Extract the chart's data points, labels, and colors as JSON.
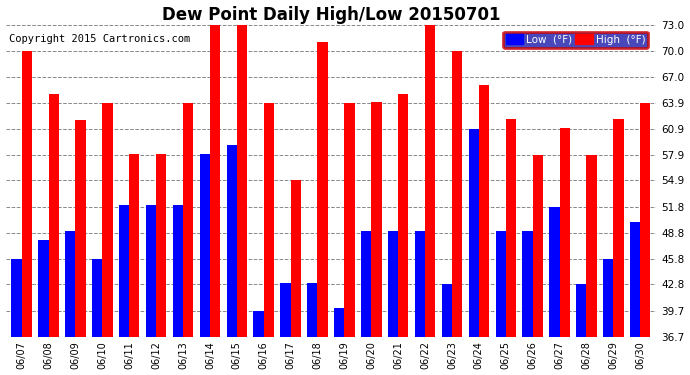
{
  "title": "Dew Point Daily High/Low 20150701",
  "copyright": "Copyright 2015 Cartronics.com",
  "categories": [
    "06/07",
    "06/08",
    "06/09",
    "06/10",
    "06/11",
    "06/12",
    "06/13",
    "06/14",
    "06/15",
    "06/16",
    "06/17",
    "06/18",
    "06/19",
    "06/20",
    "06/21",
    "06/22",
    "06/23",
    "06/24",
    "06/25",
    "06/26",
    "06/27",
    "06/28",
    "06/29",
    "06/30"
  ],
  "low": [
    45.8,
    48.0,
    49.0,
    45.8,
    52.0,
    52.0,
    52.0,
    58.0,
    59.0,
    39.7,
    43.0,
    43.0,
    40.0,
    49.0,
    49.0,
    49.0,
    42.8,
    60.9,
    49.0,
    49.0,
    51.8,
    42.8,
    45.8,
    50.0
  ],
  "high": [
    70.0,
    65.0,
    61.9,
    63.9,
    58.0,
    58.0,
    63.9,
    73.0,
    73.0,
    63.9,
    55.0,
    71.0,
    63.9,
    64.0,
    65.0,
    73.0,
    70.0,
    66.0,
    62.0,
    57.9,
    61.0,
    57.9,
    62.0,
    63.9
  ],
  "yticks": [
    36.7,
    39.7,
    42.8,
    45.8,
    48.8,
    51.8,
    54.9,
    57.9,
    60.9,
    63.9,
    67.0,
    70.0,
    73.0
  ],
  "ymin": 36.7,
  "ymax": 73.0,
  "low_color": "#0000ff",
  "high_color": "#ff0000",
  "bg_color": "#ffffff",
  "grid_color": "#888888",
  "title_fontsize": 12,
  "copyright_fontsize": 7.5
}
